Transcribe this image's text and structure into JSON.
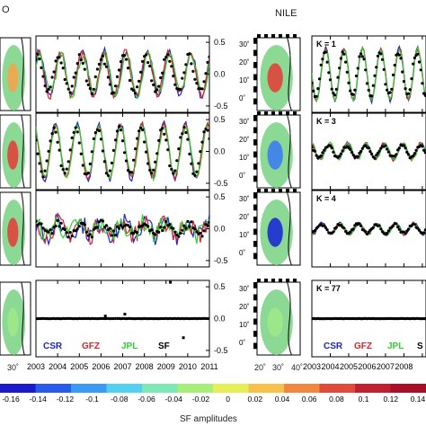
{
  "figure": {
    "left_title": "O",
    "right_title": "NILE",
    "colorbar_label": "SF amplitudes",
    "colorbar_ticks": [
      "-0.16",
      "-0.14",
      "-0.12",
      "-0.1",
      "-0.08",
      "-0.06",
      "-0.04",
      "-0.02",
      "0",
      "0.02",
      "0.04",
      "0.06",
      "0.08",
      "0.1",
      "0.12",
      "0.14"
    ],
    "left_map_lon_label": "30˚",
    "right_map_lat_labels": [
      "30˚",
      "20˚",
      "10˚",
      "0˚"
    ],
    "right_map_lon_labels": [
      "20˚",
      "30˚",
      "40˚"
    ],
    "legend": [
      {
        "name": "CSR",
        "color": "#1f24c8"
      },
      {
        "name": "GFZ",
        "color": "#d8232a"
      },
      {
        "name": "JPL",
        "color": "#2fcf2f"
      },
      {
        "name": "SF",
        "color": "#000000"
      }
    ],
    "right_legend_visible": [
      "CSR",
      "GFZ",
      "JPL",
      "S"
    ]
  },
  "chart_data": [
    {
      "type": "line",
      "panel": "left-row-1",
      "xlim": [
        2003,
        2011
      ],
      "ylim": [
        -0.6,
        0.6
      ],
      "yticks": [
        "0.5",
        "0.0",
        "-0.5"
      ],
      "series": [
        {
          "name": "CSR",
          "model": "seasonal",
          "amp": 0.36,
          "phase": 0.1,
          "noise": 0.06
        },
        {
          "name": "GFZ",
          "model": "seasonal",
          "amp": 0.33,
          "phase": 0.12,
          "noise": 0.07
        },
        {
          "name": "JPL",
          "model": "seasonal",
          "amp": 0.31,
          "phase": 0.08,
          "noise": 0.07
        },
        {
          "name": "SF",
          "model": "seasonal",
          "amp": 0.28,
          "phase": 0.2,
          "noise": 0.05,
          "markers": true
        }
      ]
    },
    {
      "type": "line",
      "panel": "left-row-2",
      "xlim": [
        2003,
        2011
      ],
      "ylim": [
        -0.6,
        0.6
      ],
      "yticks": [
        "0.5",
        "0.0",
        "-0.5"
      ],
      "series": [
        {
          "name": "CSR",
          "model": "seasonal",
          "amp": 0.44,
          "phase": 0.35,
          "noise": 0.04
        },
        {
          "name": "GFZ",
          "model": "seasonal",
          "amp": 0.42,
          "phase": 0.36,
          "noise": 0.05
        },
        {
          "name": "JPL",
          "model": "seasonal",
          "amp": 0.4,
          "phase": 0.34,
          "noise": 0.05
        },
        {
          "name": "SF",
          "model": "seasonal",
          "amp": 0.36,
          "phase": 0.42,
          "noise": 0.04,
          "markers": true
        }
      ]
    },
    {
      "type": "line",
      "panel": "left-row-3",
      "xlim": [
        2003,
        2011
      ],
      "ylim": [
        -0.6,
        0.6
      ],
      "yticks": [
        "0.5",
        "0.0",
        "-0.5"
      ],
      "series": [
        {
          "name": "CSR",
          "model": "noisy",
          "amp": 0.1,
          "phase": 0.2,
          "noise": 0.16
        },
        {
          "name": "GFZ",
          "model": "noisy",
          "amp": 0.1,
          "phase": 0.25,
          "noise": 0.15
        },
        {
          "name": "JPL",
          "model": "noisy",
          "amp": 0.1,
          "phase": 0.3,
          "noise": 0.14
        },
        {
          "name": "SF",
          "model": "noisy",
          "amp": 0.08,
          "phase": 0.2,
          "noise": 0.06,
          "markers": true
        }
      ]
    },
    {
      "type": "scatter",
      "panel": "left-row-4",
      "xlim": [
        2003,
        2011
      ],
      "ylim": [
        -0.6,
        0.6
      ],
      "yticks": [
        "0.5",
        "0.0",
        "-0.5"
      ],
      "xticks": [
        "2003",
        "2004",
        "2005",
        "2006",
        "2007",
        "2008",
        "2009",
        "2010",
        "2011"
      ],
      "series": [
        {
          "name": "SF",
          "model": "flat",
          "value": 0.0,
          "markers": true,
          "outliers": [
            [
              2006.2,
              0.04
            ],
            [
              2007.1,
              0.07
            ],
            [
              2009.2,
              0.57
            ],
            [
              2009.8,
              -0.3
            ]
          ]
        }
      ]
    },
    {
      "type": "line",
      "panel": "right-row-1",
      "label": "K = 1",
      "xlim": [
        2003,
        2009.2
      ],
      "ylim": [
        -0.6,
        0.6
      ],
      "series": [
        {
          "name": "CSR",
          "model": "seasonal",
          "amp": 0.42,
          "phase": 0.5,
          "noise": 0.03
        },
        {
          "name": "GFZ",
          "model": "seasonal",
          "amp": 0.41,
          "phase": 0.5,
          "noise": 0.03
        },
        {
          "name": "JPL",
          "model": "seasonal",
          "amp": 0.4,
          "phase": 0.5,
          "noise": 0.03
        },
        {
          "name": "SF",
          "model": "seasonal",
          "amp": 0.34,
          "phase": 0.56,
          "noise": 0.04,
          "markers": true
        }
      ]
    },
    {
      "type": "line",
      "panel": "right-row-2",
      "label": "K = 3",
      "xlim": [
        2003,
        2009.2
      ],
      "ylim": [
        -0.6,
        0.6
      ],
      "series": [
        {
          "name": "CSR",
          "model": "seasonal",
          "amp": 0.12,
          "phase": 0.3,
          "noise": 0.02
        },
        {
          "name": "GFZ",
          "model": "seasonal",
          "amp": 0.13,
          "phase": 0.32,
          "noise": 0.03
        },
        {
          "name": "JPL",
          "model": "seasonal",
          "amp": 0.12,
          "phase": 0.28,
          "noise": 0.03
        },
        {
          "name": "SF",
          "model": "seasonal",
          "amp": 0.09,
          "phase": 0.35,
          "noise": 0.02,
          "markers": true
        }
      ]
    },
    {
      "type": "line",
      "panel": "right-row-3",
      "label": "K = 4",
      "xlim": [
        2003,
        2009.2
      ],
      "ylim": [
        -0.6,
        0.6
      ],
      "series": [
        {
          "name": "CSR",
          "model": "seasonal",
          "amp": 0.09,
          "phase": 0.7,
          "noise": 0.02
        },
        {
          "name": "GFZ",
          "model": "seasonal",
          "amp": 0.09,
          "phase": 0.72,
          "noise": 0.02
        },
        {
          "name": "JPL",
          "model": "seasonal",
          "amp": 0.08,
          "phase": 0.68,
          "noise": 0.02
        },
        {
          "name": "SF",
          "model": "seasonal",
          "amp": 0.07,
          "phase": 0.75,
          "noise": 0.02,
          "markers": true
        }
      ]
    },
    {
      "type": "scatter",
      "panel": "right-row-4",
      "label": "K = 77",
      "xlim": [
        2003,
        2009.2
      ],
      "ylim": [
        -0.6,
        0.6
      ],
      "xticks": [
        "2003",
        "2004",
        "2005",
        "2006",
        "2007",
        "2008"
      ],
      "series": [
        {
          "name": "SF",
          "model": "flat",
          "value": 0.0,
          "markers": true,
          "outliers": []
        }
      ]
    }
  ]
}
